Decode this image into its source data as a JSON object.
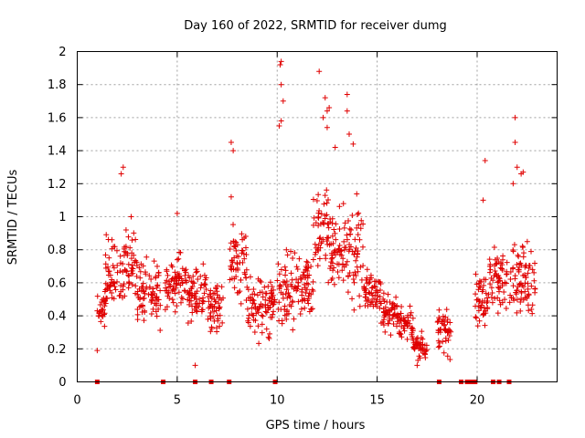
{
  "chart_data": {
    "type": "scatter",
    "title": "Day 160 of 2022, SRMTID for receiver dumg",
    "xlabel": "GPS time / hours",
    "ylabel": "SRMTID / TECUs",
    "xlim": [
      0,
      24
    ],
    "ylim": [
      0,
      2
    ],
    "x_ticks": [
      0,
      5,
      10,
      15,
      20
    ],
    "x_tick_labels": [
      "0",
      "5",
      "10",
      "15",
      "20"
    ],
    "y_ticks": [
      0,
      0.2,
      0.4,
      0.6,
      0.8,
      1,
      1.2,
      1.4,
      1.6,
      1.8,
      2
    ],
    "y_tick_labels": [
      "0",
      "0.2",
      "0.4",
      "0.6",
      "0.8",
      "1",
      "1.2",
      "1.4",
      "1.6",
      "1.8",
      "2"
    ],
    "grid": true,
    "marker": "+",
    "marker_color": "#e00000",
    "zero_value_markers_x": [
      1.0,
      4.3,
      5.9,
      6.7,
      7.6,
      9.9,
      18.1,
      19.2,
      19.5,
      19.7,
      19.9,
      20.8,
      21.1,
      21.6
    ],
    "activity_segments": [
      {
        "x": [
          1.0,
          1.4
        ],
        "y_range": [
          0.28,
          0.62
        ]
      },
      {
        "x": [
          1.4,
          2.2
        ],
        "y_range": [
          0.35,
          0.95
        ]
      },
      {
        "x": [
          2.2,
          3.0
        ],
        "y_range": [
          0.38,
          1.05
        ]
      },
      {
        "x": [
          3.0,
          4.2
        ],
        "y_range": [
          0.25,
          0.8
        ]
      },
      {
        "x": [
          4.4,
          5.5
        ],
        "y_range": [
          0.35,
          0.85
        ]
      },
      {
        "x": [
          5.5,
          6.5
        ],
        "y_range": [
          0.3,
          0.75
        ]
      },
      {
        "x": [
          6.5,
          7.3
        ],
        "y_range": [
          0.2,
          0.7
        ]
      },
      {
        "x": [
          7.6,
          8.5
        ],
        "y_range": [
          0.45,
          1.0
        ]
      },
      {
        "x": [
          8.5,
          9.9
        ],
        "y_range": [
          0.2,
          0.72
        ]
      },
      {
        "x": [
          10.0,
          10.8
        ],
        "y_range": [
          0.15,
          0.95
        ]
      },
      {
        "x": [
          10.8,
          11.8
        ],
        "y_range": [
          0.3,
          0.9
        ]
      },
      {
        "x": [
          11.8,
          12.6
        ],
        "y_range": [
          0.55,
          1.3
        ]
      },
      {
        "x": [
          12.6,
          13.5
        ],
        "y_range": [
          0.5,
          1.15
        ]
      },
      {
        "x": [
          13.5,
          14.3
        ],
        "y_range": [
          0.35,
          1.2
        ]
      },
      {
        "x": [
          14.3,
          15.2
        ],
        "y_range": [
          0.35,
          0.75
        ]
      },
      {
        "x": [
          15.2,
          16.0
        ],
        "y_range": [
          0.25,
          0.6
        ]
      },
      {
        "x": [
          16.0,
          16.8
        ],
        "y_range": [
          0.2,
          0.5
        ]
      },
      {
        "x": [
          16.8,
          17.5
        ],
        "y_range": [
          0.1,
          0.32
        ]
      },
      {
        "x": [
          18.0,
          18.7
        ],
        "y_range": [
          0.1,
          0.55
        ]
      },
      {
        "x": [
          19.9,
          20.6
        ],
        "y_range": [
          0.25,
          0.7
        ]
      },
      {
        "x": [
          20.6,
          21.5
        ],
        "y_range": [
          0.4,
          0.85
        ]
      },
      {
        "x": [
          21.6,
          22.9
        ],
        "y_range": [
          0.3,
          0.95
        ]
      }
    ],
    "notable_points": [
      {
        "x": 1.0,
        "y": 0.19
      },
      {
        "x": 2.3,
        "y": 1.3
      },
      {
        "x": 2.2,
        "y": 1.26
      },
      {
        "x": 5.0,
        "y": 1.02
      },
      {
        "x": 7.7,
        "y": 1.45
      },
      {
        "x": 7.8,
        "y": 1.4
      },
      {
        "x": 7.7,
        "y": 1.12
      },
      {
        "x": 10.2,
        "y": 1.94
      },
      {
        "x": 10.15,
        "y": 1.92
      },
      {
        "x": 10.2,
        "y": 1.8
      },
      {
        "x": 10.3,
        "y": 1.7
      },
      {
        "x": 10.2,
        "y": 1.58
      },
      {
        "x": 10.1,
        "y": 1.55
      },
      {
        "x": 12.1,
        "y": 1.88
      },
      {
        "x": 12.4,
        "y": 1.72
      },
      {
        "x": 12.6,
        "y": 1.66
      },
      {
        "x": 12.5,
        "y": 1.64
      },
      {
        "x": 12.3,
        "y": 1.6
      },
      {
        "x": 13.5,
        "y": 1.74
      },
      {
        "x": 13.5,
        "y": 1.64
      },
      {
        "x": 13.6,
        "y": 1.5
      },
      {
        "x": 13.8,
        "y": 1.44
      },
      {
        "x": 12.5,
        "y": 1.54
      },
      {
        "x": 12.9,
        "y": 1.42
      },
      {
        "x": 20.4,
        "y": 1.34
      },
      {
        "x": 20.3,
        "y": 1.1
      },
      {
        "x": 21.9,
        "y": 1.6
      },
      {
        "x": 21.9,
        "y": 1.45
      },
      {
        "x": 22.3,
        "y": 1.27
      },
      {
        "x": 22.2,
        "y": 1.26
      },
      {
        "x": 22.0,
        "y": 1.3
      },
      {
        "x": 21.8,
        "y": 1.2
      },
      {
        "x": 17.0,
        "y": 0.1
      },
      {
        "x": 5.9,
        "y": 0.1
      }
    ]
  }
}
